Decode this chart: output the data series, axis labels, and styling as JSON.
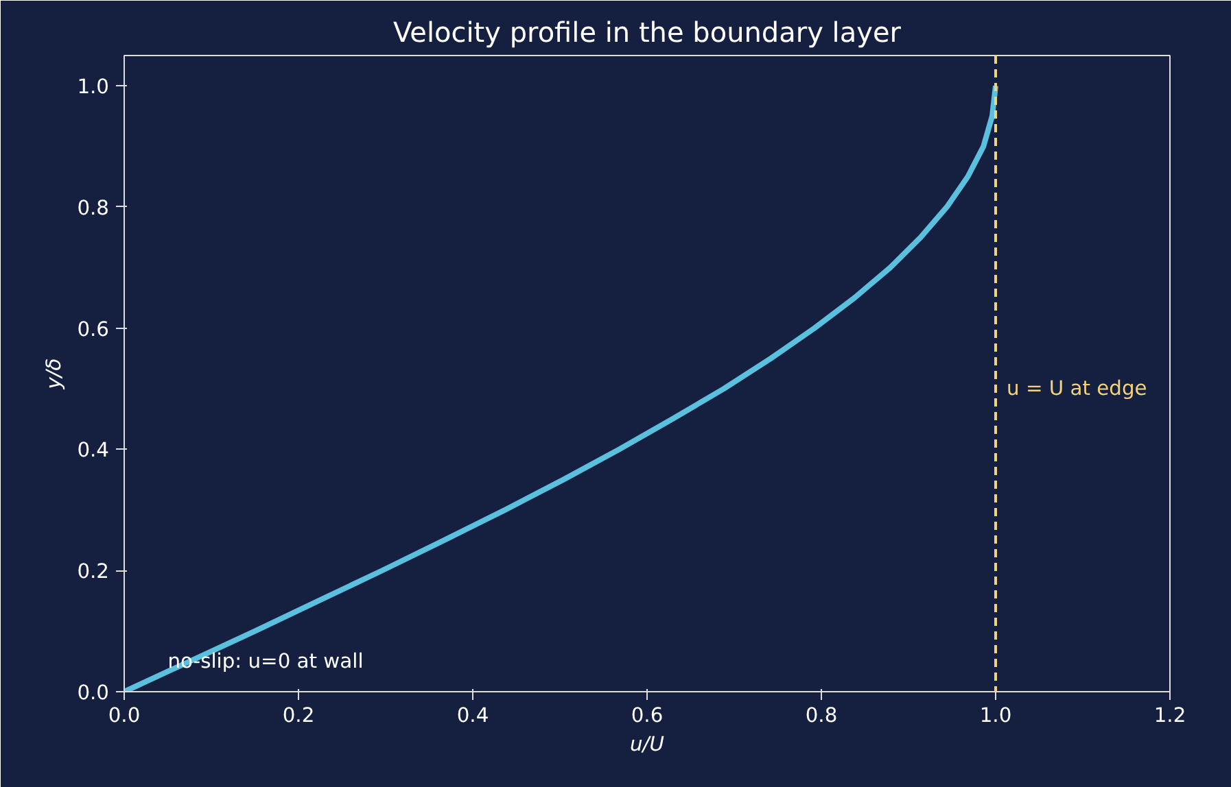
{
  "chart_data": {
    "type": "line",
    "title": "Velocity profile in the boundary layer",
    "xlabel": "u/U",
    "ylabel": "y/δ",
    "x": [
      0,
      0.075,
      0.15,
      0.223,
      0.296,
      0.367,
      0.437,
      0.504,
      0.568,
      0.629,
      0.688,
      0.742,
      0.792,
      0.838,
      0.879,
      0.914,
      0.944,
      0.968,
      0.986,
      0.996,
      1.0
    ],
    "series": [
      {
        "color": "#5bc0de",
        "values": [
          0,
          0.05,
          0.1,
          0.15,
          0.2,
          0.25,
          0.3,
          0.35,
          0.4,
          0.45,
          0.5,
          0.55,
          0.6,
          0.65,
          0.7,
          0.75,
          0.8,
          0.85,
          0.9,
          0.95,
          1.0
        ]
      }
    ],
    "xlim": [
      0,
      1.2
    ],
    "xticks": [
      {
        "value": 0,
        "label": "0.0"
      },
      0.2,
      0.4,
      0.6,
      0.8,
      {
        "value": 1,
        "label": "1.0"
      },
      1.2
    ],
    "ylim": [
      0,
      1.05
    ],
    "yticks": [
      {
        "value": 0,
        "label": "0.0"
      },
      0.2,
      0.4,
      0.6,
      0.8,
      {
        "value": 1,
        "label": "1.0"
      }
    ],
    "ref_lines": [
      {
        "axis": "x",
        "value": 1.0,
        "label": "u = U at edge",
        "color": "#f2d27a",
        "line_style": "dashed"
      }
    ],
    "annotations": [
      {
        "text": "no-slip: u=0 at wall",
        "x": 0.05,
        "y": 0.05
      }
    ],
    "grid": false,
    "marker": "none",
    "line_style": "solid"
  }
}
